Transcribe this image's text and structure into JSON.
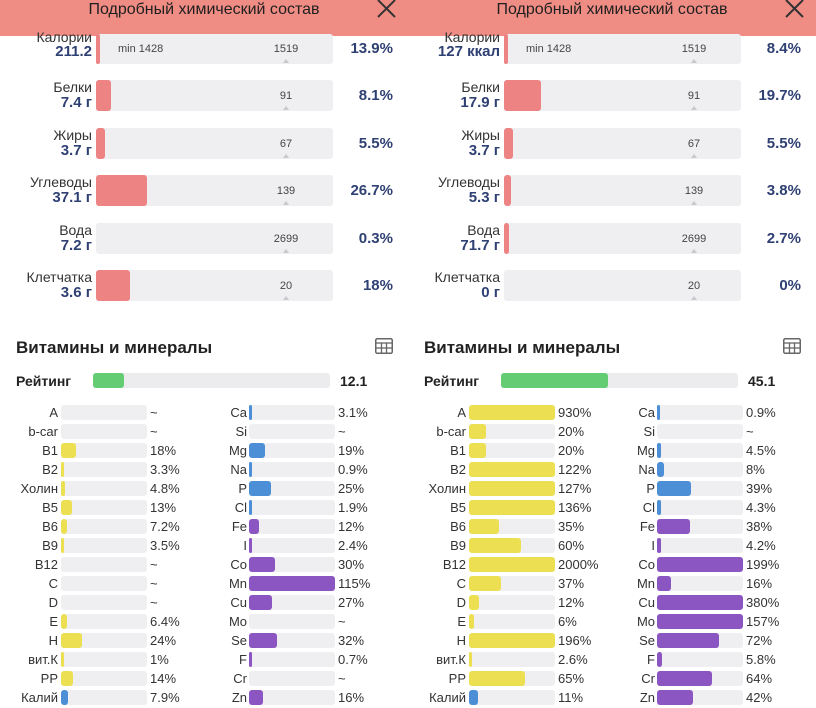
{
  "colors": {
    "header_bg": "#ef8c84",
    "macro_fill": "#ee8383",
    "vitamin_fill": "#ece052",
    "mineral_blue_fill": "#4d8fd6",
    "mineral_purple_fill": "#8b55c2",
    "rating_fill": "#64cd73"
  },
  "panels": [
    {
      "title": "Подробный химический состав",
      "nutrients": [
        {
          "label": "Калории",
          "value": "211.2",
          "min_label": "min 1428",
          "target": "1519",
          "percent": "13.9%",
          "fill": 0.01
        },
        {
          "label": "Белки",
          "value": "7.4 г",
          "min_label": "",
          "target": "91",
          "percent": "8.1%",
          "fill": 0.063
        },
        {
          "label": "Жиры",
          "value": "3.7 г",
          "min_label": "",
          "target": "67",
          "percent": "5.5%",
          "fill": 0.04
        },
        {
          "label": "Углеводы",
          "value": "37.1 г",
          "min_label": "",
          "target": "139",
          "percent": "26.7%",
          "fill": 0.215
        },
        {
          "label": "Вода",
          "value": "7.2 г",
          "min_label": "",
          "target": "2699",
          "percent": "0.3%",
          "fill": 0.0
        },
        {
          "label": "Клетчатка",
          "value": "3.6 г",
          "min_label": "",
          "target": "20",
          "percent": "18%",
          "fill": 0.143
        }
      ],
      "vm_title": "Витамины и минералы",
      "rating_label": "Рейтинг",
      "rating_value": "12.1",
      "rating_fill": 0.13,
      "vitamins": [
        {
          "label": "A",
          "percent": "~",
          "fill": 0
        },
        {
          "label": "b-car",
          "percent": "~",
          "fill": 0
        },
        {
          "label": "B1",
          "percent": "18%",
          "fill": 0.18
        },
        {
          "label": "B2",
          "percent": "3.3%",
          "fill": 0.033
        },
        {
          "label": "Холин",
          "percent": "4.8%",
          "fill": 0.048
        },
        {
          "label": "B5",
          "percent": "13%",
          "fill": 0.13
        },
        {
          "label": "B6",
          "percent": "7.2%",
          "fill": 0.072
        },
        {
          "label": "B9",
          "percent": "3.5%",
          "fill": 0.035
        },
        {
          "label": "B12",
          "percent": "~",
          "fill": 0
        },
        {
          "label": "C",
          "percent": "~",
          "fill": 0
        },
        {
          "label": "D",
          "percent": "~",
          "fill": 0
        },
        {
          "label": "E",
          "percent": "6.4%",
          "fill": 0.064
        },
        {
          "label": "H",
          "percent": "24%",
          "fill": 0.24
        },
        {
          "label": "вит.К",
          "percent": "1%",
          "fill": 0.01
        },
        {
          "label": "PP",
          "percent": "14%",
          "fill": 0.14
        },
        {
          "label": "Калий",
          "percent": "7.9%",
          "fill": 0.079,
          "color": "blue"
        }
      ],
      "minerals": [
        {
          "label": "Ca",
          "percent": "3.1%",
          "fill": 0.031,
          "color": "blue"
        },
        {
          "label": "Si",
          "percent": "~",
          "fill": 0,
          "color": "blue"
        },
        {
          "label": "Mg",
          "percent": "19%",
          "fill": 0.19,
          "color": "blue"
        },
        {
          "label": "Na",
          "percent": "0.9%",
          "fill": 0.009,
          "color": "blue"
        },
        {
          "label": "P",
          "percent": "25%",
          "fill": 0.25,
          "color": "blue"
        },
        {
          "label": "Cl",
          "percent": "1.9%",
          "fill": 0.019,
          "color": "blue"
        },
        {
          "label": "Fe",
          "percent": "12%",
          "fill": 0.12,
          "color": "purple"
        },
        {
          "label": "I",
          "percent": "2.4%",
          "fill": 0.024,
          "color": "purple"
        },
        {
          "label": "Co",
          "percent": "30%",
          "fill": 0.3,
          "color": "purple"
        },
        {
          "label": "Mn",
          "percent": "115%",
          "fill": 1.0,
          "color": "purple"
        },
        {
          "label": "Cu",
          "percent": "27%",
          "fill": 0.27,
          "color": "purple"
        },
        {
          "label": "Mo",
          "percent": "~",
          "fill": 0,
          "color": "purple"
        },
        {
          "label": "Se",
          "percent": "32%",
          "fill": 0.32,
          "color": "purple"
        },
        {
          "label": "F",
          "percent": "0.7%",
          "fill": 0.007,
          "color": "purple"
        },
        {
          "label": "Cr",
          "percent": "~",
          "fill": 0,
          "color": "purple"
        },
        {
          "label": "Zn",
          "percent": "16%",
          "fill": 0.16,
          "color": "purple"
        }
      ]
    },
    {
      "title": "Подробный химический состав",
      "nutrients": [
        {
          "label": "Калории",
          "value": "127 ккал",
          "min_label": "min 1428",
          "target": "1519",
          "percent": "8.4%",
          "fill": 0.01
        },
        {
          "label": "Белки",
          "value": "17.9 г",
          "min_label": "",
          "target": "91",
          "percent": "19.7%",
          "fill": 0.155
        },
        {
          "label": "Жиры",
          "value": "3.7 г",
          "min_label": "",
          "target": "67",
          "percent": "5.5%",
          "fill": 0.04
        },
        {
          "label": "Углеводы",
          "value": "5.3 г",
          "min_label": "",
          "target": "139",
          "percent": "3.8%",
          "fill": 0.03
        },
        {
          "label": "Вода",
          "value": "71.7 г",
          "min_label": "",
          "target": "2699",
          "percent": "2.7%",
          "fill": 0.02
        },
        {
          "label": "Клетчатка",
          "value": "0 г",
          "min_label": "",
          "target": "20",
          "percent": "0%",
          "fill": 0.0
        }
      ],
      "vm_title": "Витамины и минералы",
      "rating_label": "Рейтинг",
      "rating_value": "45.1",
      "rating_fill": 0.45,
      "vitamins": [
        {
          "label": "A",
          "percent": "930%",
          "fill": 1.0
        },
        {
          "label": "b-car",
          "percent": "20%",
          "fill": 0.2
        },
        {
          "label": "B1",
          "percent": "20%",
          "fill": 0.2
        },
        {
          "label": "B2",
          "percent": "122%",
          "fill": 1.0
        },
        {
          "label": "Холин",
          "percent": "127%",
          "fill": 1.0
        },
        {
          "label": "B5",
          "percent": "136%",
          "fill": 1.0
        },
        {
          "label": "B6",
          "percent": "35%",
          "fill": 0.35
        },
        {
          "label": "B9",
          "percent": "60%",
          "fill": 0.6
        },
        {
          "label": "B12",
          "percent": "2000%",
          "fill": 1.0
        },
        {
          "label": "C",
          "percent": "37%",
          "fill": 0.37
        },
        {
          "label": "D",
          "percent": "12%",
          "fill": 0.12
        },
        {
          "label": "E",
          "percent": "6%",
          "fill": 0.06
        },
        {
          "label": "H",
          "percent": "196%",
          "fill": 1.0
        },
        {
          "label": "вит.К",
          "percent": "2.6%",
          "fill": 0.026
        },
        {
          "label": "PP",
          "percent": "65%",
          "fill": 0.65
        },
        {
          "label": "Калий",
          "percent": "11%",
          "fill": 0.11,
          "color": "blue"
        }
      ],
      "minerals": [
        {
          "label": "Ca",
          "percent": "0.9%",
          "fill": 0.009,
          "color": "blue"
        },
        {
          "label": "Si",
          "percent": "~",
          "fill": 0,
          "color": "blue"
        },
        {
          "label": "Mg",
          "percent": "4.5%",
          "fill": 0.045,
          "color": "blue"
        },
        {
          "label": "Na",
          "percent": "8%",
          "fill": 0.08,
          "color": "blue"
        },
        {
          "label": "P",
          "percent": "39%",
          "fill": 0.39,
          "color": "blue"
        },
        {
          "label": "Cl",
          "percent": "4.3%",
          "fill": 0.043,
          "color": "blue"
        },
        {
          "label": "Fe",
          "percent": "38%",
          "fill": 0.38,
          "color": "purple"
        },
        {
          "label": "I",
          "percent": "4.2%",
          "fill": 0.042,
          "color": "purple"
        },
        {
          "label": "Co",
          "percent": "199%",
          "fill": 1.0,
          "color": "purple"
        },
        {
          "label": "Mn",
          "percent": "16%",
          "fill": 0.16,
          "color": "purple"
        },
        {
          "label": "Cu",
          "percent": "380%",
          "fill": 1.0,
          "color": "purple"
        },
        {
          "label": "Mo",
          "percent": "157%",
          "fill": 1.0,
          "color": "purple"
        },
        {
          "label": "Se",
          "percent": "72%",
          "fill": 0.72,
          "color": "purple"
        },
        {
          "label": "F",
          "percent": "5.8%",
          "fill": 0.058,
          "color": "purple"
        },
        {
          "label": "Cr",
          "percent": "64%",
          "fill": 0.64,
          "color": "purple"
        },
        {
          "label": "Zn",
          "percent": "42%",
          "fill": 0.42,
          "color": "purple"
        }
      ]
    }
  ]
}
